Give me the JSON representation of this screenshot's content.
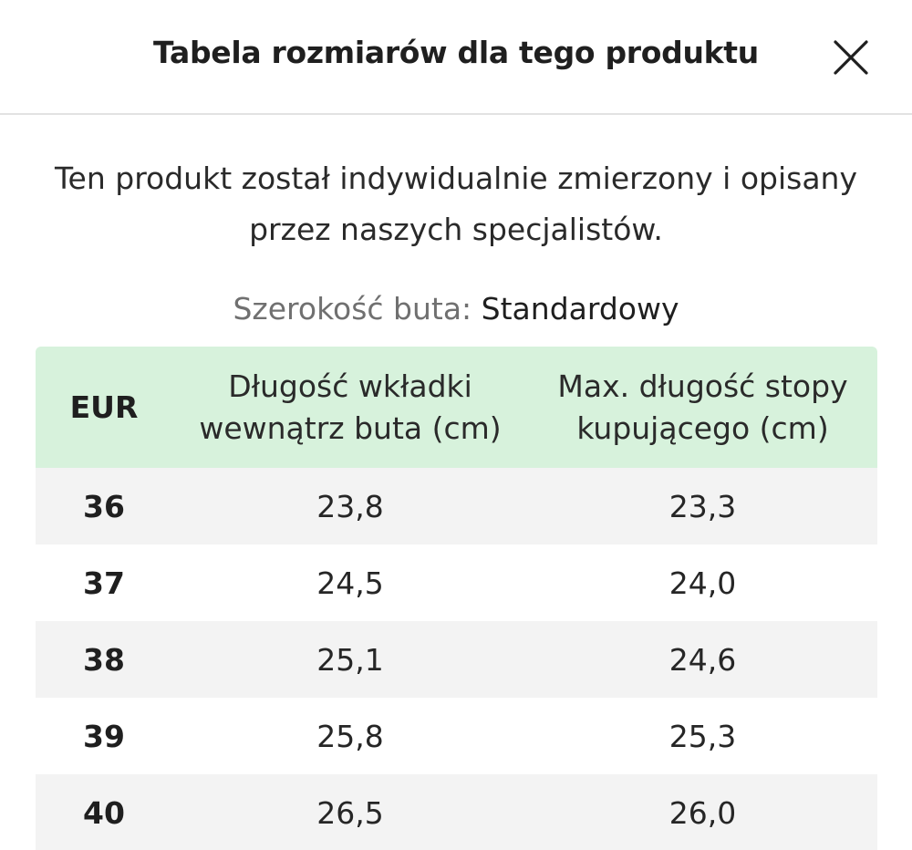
{
  "header": {
    "title": "Tabela rozmiarów dla tego produktu",
    "close_icon": "close-icon"
  },
  "description": {
    "line1": "Ten produkt został indywidualnie zmierzony i opisany",
    "line2": "przez naszych specjalistów."
  },
  "shoe_width": {
    "label": "Szerokość buta:",
    "value": "Standardowy"
  },
  "colors": {
    "header_bg": "#d7f2dc",
    "row_alt_bg": "#f3f3f3",
    "divider": "#e2e2e2"
  },
  "table": {
    "columns": [
      {
        "line1": "EUR",
        "line2": ""
      },
      {
        "line1": "Długość wkładki",
        "line2": "wewnątrz buta (cm)"
      },
      {
        "line1": "Max. długość stopy",
        "line2": "kupującego (cm)"
      }
    ],
    "rows": [
      {
        "eur": "36",
        "insole": "23,8",
        "foot": "23,3"
      },
      {
        "eur": "37",
        "insole": "24,5",
        "foot": "24,0"
      },
      {
        "eur": "38",
        "insole": "25,1",
        "foot": "24,6"
      },
      {
        "eur": "39",
        "insole": "25,8",
        "foot": "25,3"
      },
      {
        "eur": "40",
        "insole": "26,5",
        "foot": "26,0"
      }
    ]
  }
}
